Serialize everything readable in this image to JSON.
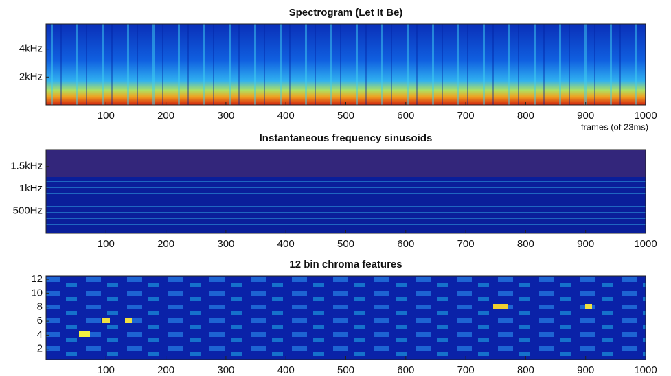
{
  "chart_data": [
    {
      "type": "heatmap",
      "title": "Spectrogram (Let It Be)",
      "xlabel": "frames (of 23ms)",
      "xlim": [
        0,
        1000
      ],
      "xticks": [
        100,
        200,
        300,
        400,
        500,
        600,
        700,
        800,
        900,
        1000
      ],
      "ylim": [
        0,
        5800
      ],
      "yticks": [
        {
          "value": 2000,
          "label": "2kHz"
        },
        {
          "value": 4000,
          "label": "4kHz"
        }
      ]
    },
    {
      "type": "heatmap",
      "title": "Instantaneous frequency sinusoids",
      "xlim": [
        0,
        1000
      ],
      "xticks": [
        100,
        200,
        300,
        400,
        500,
        600,
        700,
        800,
        900,
        1000
      ],
      "ylim": [
        0,
        1880
      ],
      "yticks": [
        {
          "value": 500,
          "label": "500Hz"
        },
        {
          "value": 1000,
          "label": "1kHz"
        },
        {
          "value": 1500,
          "label": "1.5kHz"
        }
      ]
    },
    {
      "type": "heatmap",
      "title": "12 bin chroma features",
      "xlim": [
        0,
        1000
      ],
      "xticks": [
        100,
        200,
        300,
        400,
        500,
        600,
        700,
        800,
        900,
        1000
      ],
      "ylim": [
        0.5,
        12.5
      ],
      "yticks": [
        2,
        4,
        6,
        8,
        10,
        12
      ]
    }
  ]
}
